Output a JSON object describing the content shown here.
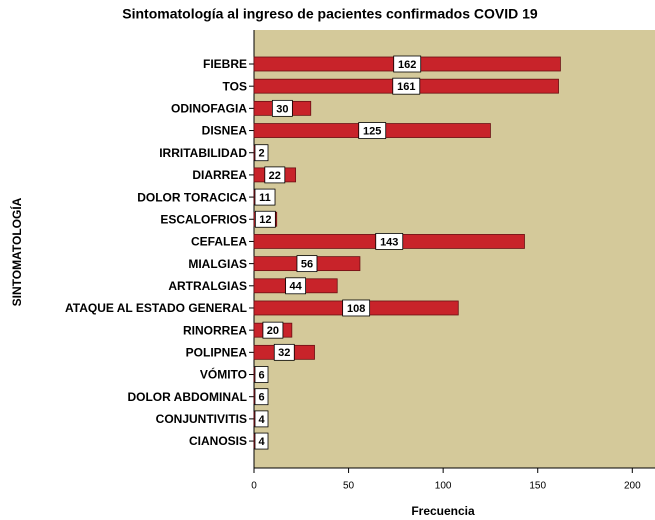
{
  "chart_data": {
    "type": "bar",
    "orientation": "horizontal",
    "title": "Sintomatología al ingreso de pacientes confirmados COVID 19",
    "x_label": "Frecuencia",
    "y_label": "SINTOMATOLOGÍA",
    "categories": [
      "FIEBRE",
      "TOS",
      "ODINOFAGIA",
      "DISNEA",
      "IRRITABILIDAD",
      "DIARREA",
      "DOLOR TORACICA",
      "ESCALOFRIOS",
      "CEFALEA",
      "MIALGIAS",
      "ARTRALGIAS",
      "ATAQUE AL ESTADO GENERAL",
      "RINORREA",
      "POLIPNEA",
      "VÓMITO",
      "DOLOR ABDOMINAL",
      "CONJUNTIVITIS",
      "CIANOSIS"
    ],
    "values": [
      162,
      161,
      30,
      125,
      2,
      22,
      11,
      12,
      143,
      56,
      44,
      108,
      20,
      32,
      6,
      6,
      4,
      4
    ],
    "color": "#c8232a",
    "background": "#d4c99a",
    "xlim": [
      0,
      212
    ],
    "xticks": [
      0,
      50,
      100,
      150,
      200
    ]
  }
}
